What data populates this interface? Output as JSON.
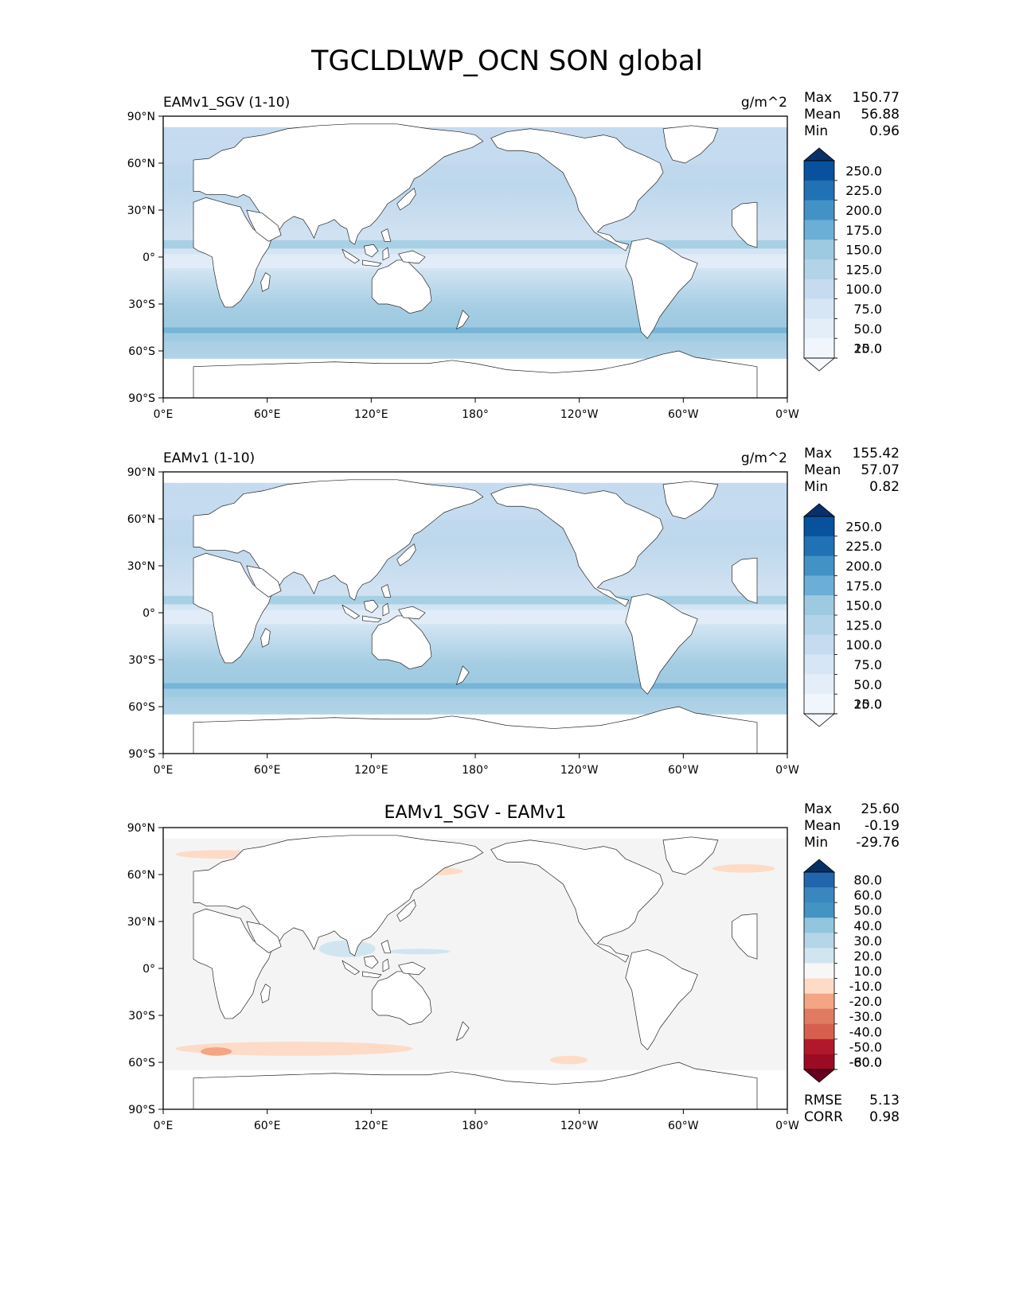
{
  "figure": {
    "title": "TGCLDLWP_OCN SON global"
  },
  "axes": {
    "lat_ticks": [
      "90°N",
      "60°N",
      "30°N",
      "0°",
      "30°S",
      "60°S",
      "90°S"
    ],
    "lon_ticks": [
      "0°E",
      "60°E",
      "120°E",
      "180°",
      "120°W",
      "60°W",
      "0°W"
    ]
  },
  "panels": [
    {
      "id": "test",
      "name": "EAMv1_SGV (1-10)",
      "units": "g/m^2",
      "stats": [
        {
          "label": "Max",
          "value": "150.77"
        },
        {
          "label": "Mean",
          "value": "56.88"
        },
        {
          "label": "Min",
          "value": "0.96"
        }
      ],
      "colorbar": {
        "levels": [
          "250.0",
          "225.0",
          "200.0",
          "175.0",
          "150.0",
          "125.0",
          "100.0",
          "75.0",
          "50.0",
          "25.0",
          "10.0"
        ],
        "colors": [
          "#08306b",
          "#08519c",
          "#2171b5",
          "#4292c6",
          "#6baed6",
          "#9ecae1",
          "#b3d3e8",
          "#c6dbef",
          "#d6e6f4",
          "#e3eef9",
          "#f0f6fc",
          "#f7fbff"
        ]
      }
    },
    {
      "id": "reference",
      "name": "EAMv1 (1-10)",
      "units": "g/m^2",
      "stats": [
        {
          "label": "Max",
          "value": "155.42"
        },
        {
          "label": "Mean",
          "value": "57.07"
        },
        {
          "label": "Min",
          "value": "0.82"
        }
      ],
      "colorbar": {
        "levels": [
          "250.0",
          "225.0",
          "200.0",
          "175.0",
          "150.0",
          "125.0",
          "100.0",
          "75.0",
          "50.0",
          "25.0",
          "10.0"
        ],
        "colors": [
          "#08306b",
          "#08519c",
          "#2171b5",
          "#4292c6",
          "#6baed6",
          "#9ecae1",
          "#b3d3e8",
          "#c6dbef",
          "#d6e6f4",
          "#e3eef9",
          "#f0f6fc",
          "#f7fbff"
        ]
      }
    },
    {
      "id": "diff",
      "title": "EAMv1_SGV - EAMv1",
      "stats": [
        {
          "label": "Max",
          "value": "25.60"
        },
        {
          "label": "Mean",
          "value": "-0.19"
        },
        {
          "label": "Min",
          "value": "-29.76"
        }
      ],
      "footer_stats": [
        {
          "label": "RMSE",
          "value": "5.13"
        },
        {
          "label": "CORR",
          "value": "0.98"
        }
      ],
      "colorbar": {
        "levels": [
          "80.0",
          "60.0",
          "50.0",
          "40.0",
          "30.0",
          "20.0",
          "10.0",
          "-10.0",
          "-20.0",
          "-30.0",
          "-40.0",
          "-50.0",
          "-60.0",
          "-80.0"
        ],
        "colors": [
          "#053061",
          "#2166ac",
          "#3a87bf",
          "#4393c3",
          "#92c5de",
          "#b5d5e8",
          "#d1e5f0",
          "#f7f7f7",
          "#fddbc7",
          "#f4a582",
          "#e07b62",
          "#d6604d",
          "#b2182b",
          "#9c0b24",
          "#67001f"
        ]
      },
      "ocean_fill": "#f4f4f4"
    }
  ]
}
